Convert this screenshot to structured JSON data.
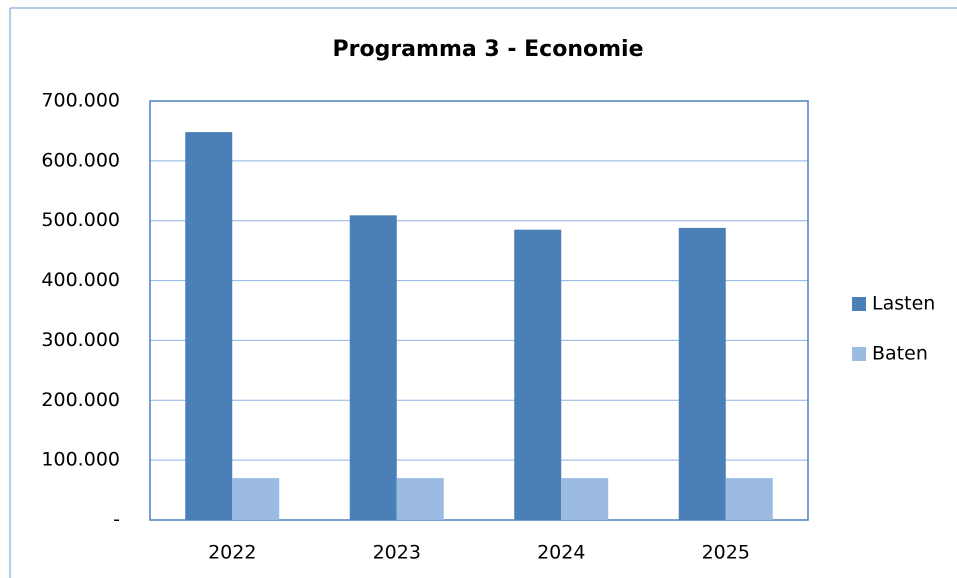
{
  "chart_data": {
    "type": "bar",
    "title": "Programma 3 - Economie",
    "categories": [
      "2022",
      "2023",
      "2024",
      "2025"
    ],
    "series": [
      {
        "name": "Lasten",
        "color": "#4a7fb8",
        "values": [
          648000,
          509000,
          485000,
          488000
        ]
      },
      {
        "name": "Baten",
        "color": "#9bbbe3",
        "values": [
          70000,
          70000,
          70000,
          70000
        ]
      }
    ],
    "ylim": [
      0,
      700000
    ],
    "yticks": [
      {
        "value": 0,
        "label": "-"
      },
      {
        "value": 100000,
        "label": "100.000"
      },
      {
        "value": 200000,
        "label": "200.000"
      },
      {
        "value": 300000,
        "label": "300.000"
      },
      {
        "value": 400000,
        "label": "400.000"
      },
      {
        "value": 500000,
        "label": "500.000"
      },
      {
        "value": 600000,
        "label": "600.000"
      },
      {
        "value": 700000,
        "label": "700.000"
      }
    ],
    "grid": true,
    "legend": "right"
  }
}
